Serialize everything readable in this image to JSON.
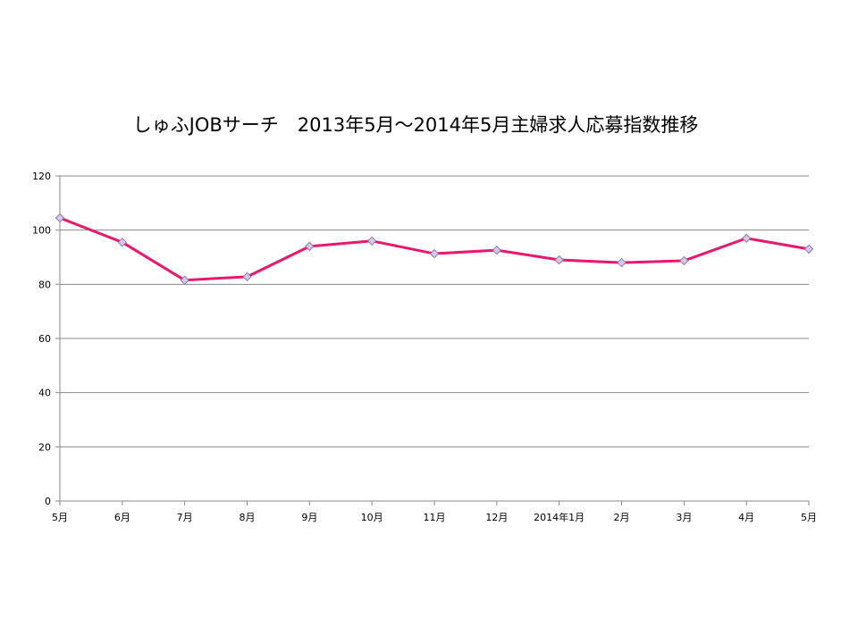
{
  "chart_data": {
    "type": "line",
    "title": "しゅふJOBサーチ　2013年5月～2014年5月主婦求人応募指数推移",
    "xlabel": "",
    "ylabel": "",
    "categories": [
      "5月",
      "6月",
      "7月",
      "8月",
      "9月",
      "10月",
      "11月",
      "12月",
      "2014年1月",
      "2月",
      "3月",
      "4月",
      "5月"
    ],
    "series": [
      {
        "values": [
          104.5,
          95.5,
          81.5,
          82.8,
          94.0,
          96.0,
          91.3,
          92.6,
          89.0,
          88.0,
          88.7,
          97.0,
          93.0
        ]
      }
    ],
    "ylim": [
      0,
      120
    ],
    "yticks": [
      0,
      20,
      40,
      60,
      80,
      100,
      120
    ],
    "grid": true,
    "legend": "none",
    "colors": {
      "line": "#E8186D",
      "marker_fill": "#D9C7E8",
      "marker_stroke": "#8E7BAF",
      "grid": "#888888",
      "axis": "#888888"
    }
  }
}
